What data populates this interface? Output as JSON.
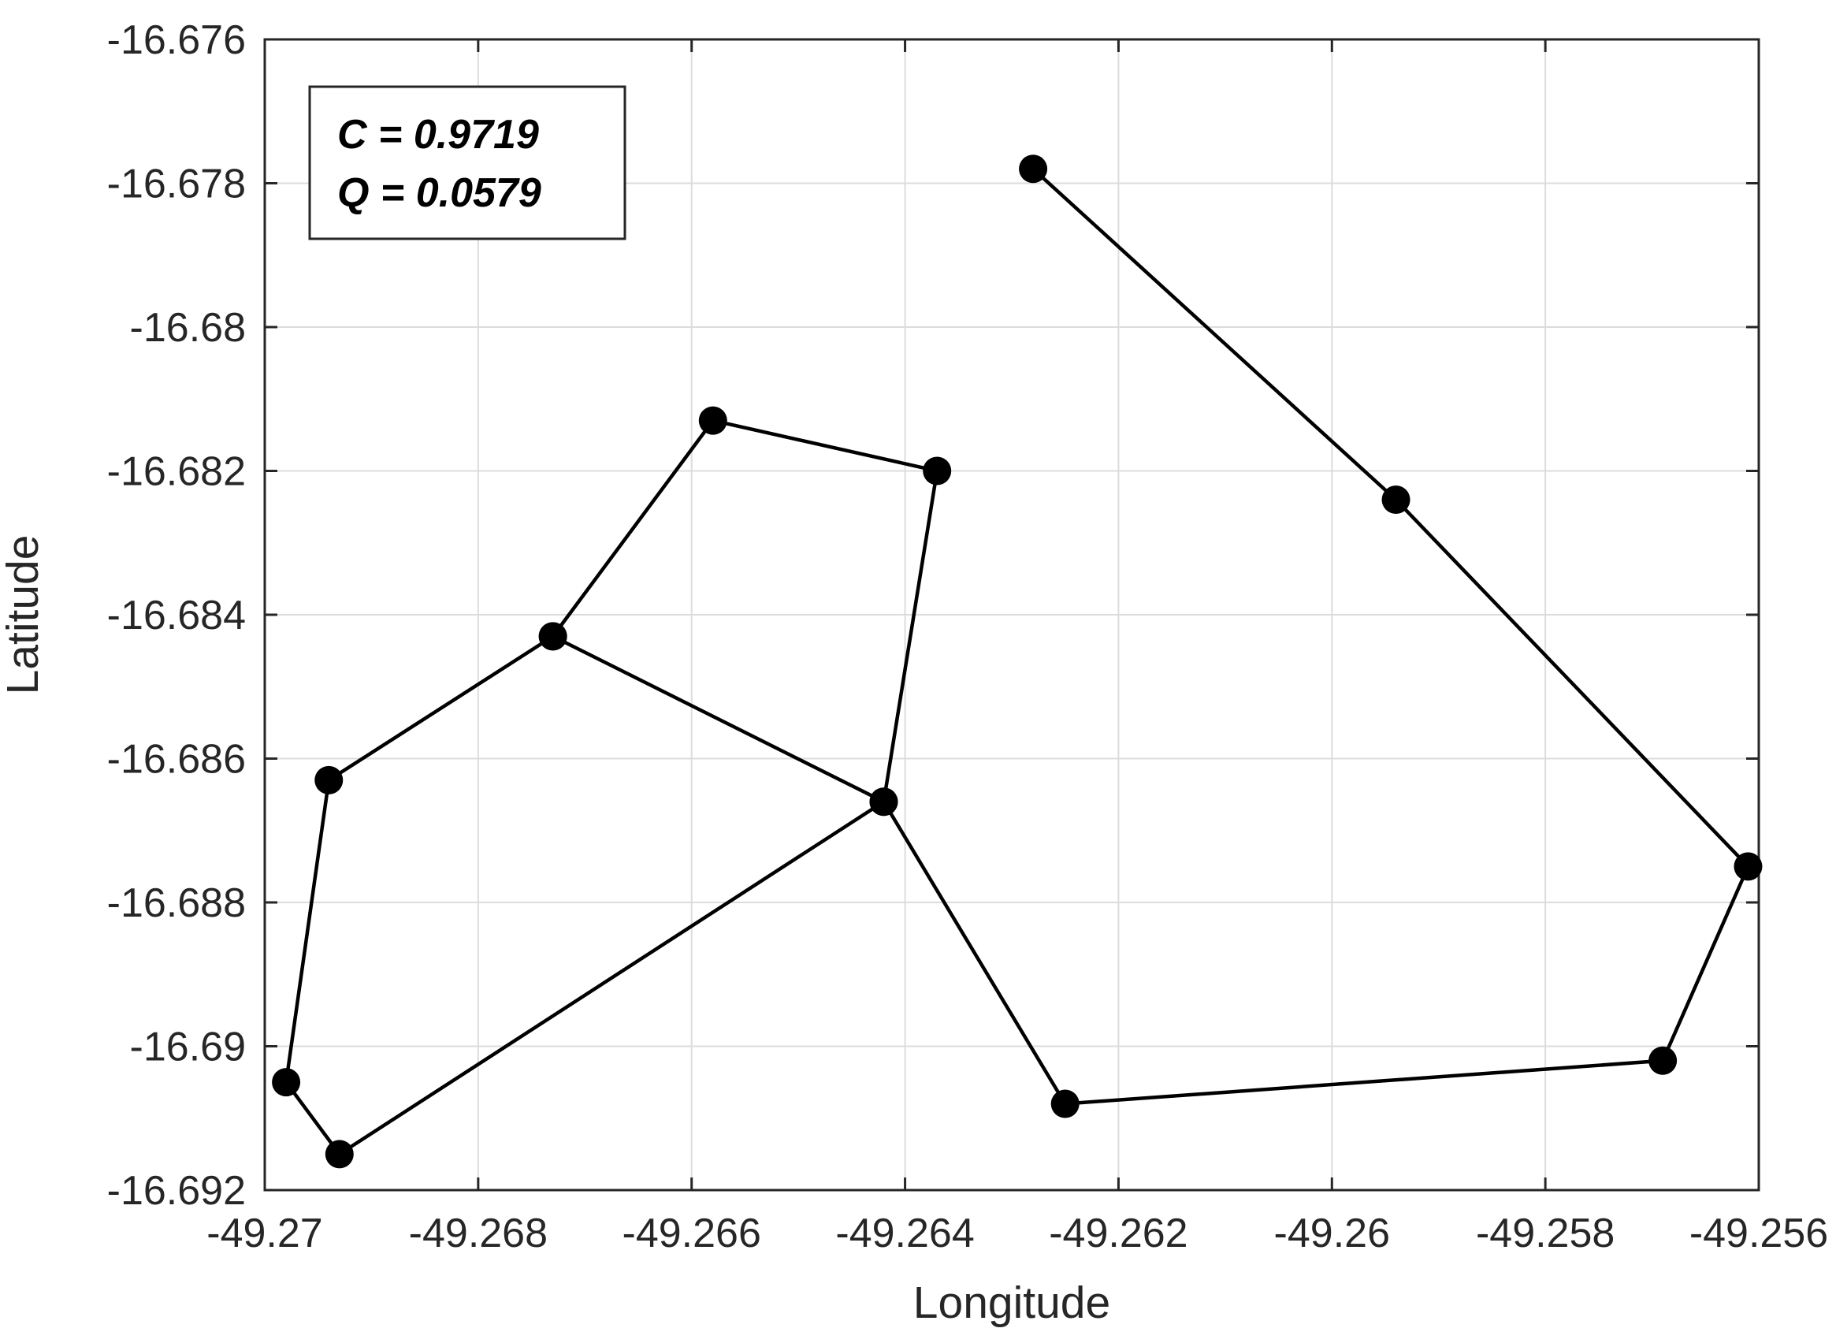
{
  "chart_data": {
    "type": "line",
    "title": "",
    "xlabel": "Longitude",
    "ylabel": "Latitude",
    "xlim": [
      -49.27,
      -49.256
    ],
    "ylim": [
      -16.692,
      -16.676
    ],
    "x_ticks": [
      -49.27,
      -49.268,
      -49.266,
      -49.264,
      -49.262,
      -49.26,
      -49.258,
      -49.256
    ],
    "x_tick_labels": [
      "-49.27",
      "-49.268",
      "-49.266",
      "-49.264",
      "-49.262",
      "-49.26",
      "-49.258",
      "-49.256"
    ],
    "y_ticks": [
      -16.676,
      -16.678,
      -16.68,
      -16.682,
      -16.684,
      -16.686,
      -16.688,
      -16.69,
      -16.692
    ],
    "y_tick_labels": [
      "-16.676",
      "-16.678",
      "-16.68",
      "-16.682",
      "-16.684",
      "-16.686",
      "-16.688",
      "-16.69",
      "-16.692"
    ],
    "grid": true,
    "series": [
      {
        "color": "#000000",
        "marker": "circle",
        "x": [
          -49.2628,
          -49.2594,
          -49.2561,
          -49.2569,
          -49.2625,
          -49.2642,
          -49.2673,
          -49.2694,
          -49.2698,
          -49.2693,
          -49.2642,
          -49.2637,
          -49.2658,
          -49.2673
        ],
        "y": [
          -16.6778,
          -16.6824,
          -16.6875,
          -16.6902,
          -16.6908,
          -16.6866,
          -16.6843,
          -16.6863,
          -16.6905,
          -16.6915,
          -16.6866,
          -16.682,
          -16.6813,
          -16.6843
        ]
      }
    ],
    "annotations": [
      {
        "text": "C = 0.9719"
      },
      {
        "text": "Q = 0.0579"
      }
    ]
  }
}
